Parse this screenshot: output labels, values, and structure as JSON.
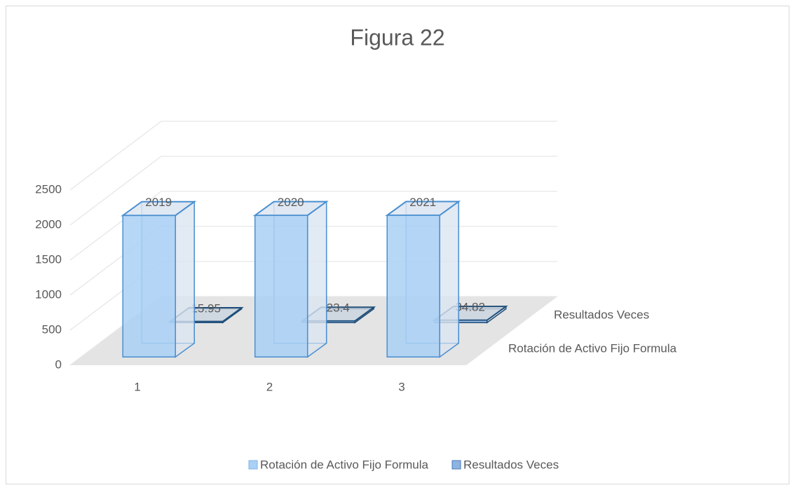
{
  "chart_data": {
    "type": "bar3d",
    "title": "Figura 22",
    "categories": [
      "1",
      "2",
      "3"
    ],
    "series": [
      {
        "name": "Rotación de Activo Fijo Formula",
        "color": "#a9d0f5",
        "values": [
          2019,
          2020,
          2021
        ]
      },
      {
        "name": "Resultados Veces",
        "color": "#8db3e2",
        "values": [
          15.95,
          23.4,
          34.82
        ]
      }
    ],
    "ylim": [
      0,
      2500
    ],
    "yticks": [
      0,
      500,
      1000,
      1500,
      2000,
      2500
    ],
    "grid": true,
    "legend": "bottom"
  }
}
